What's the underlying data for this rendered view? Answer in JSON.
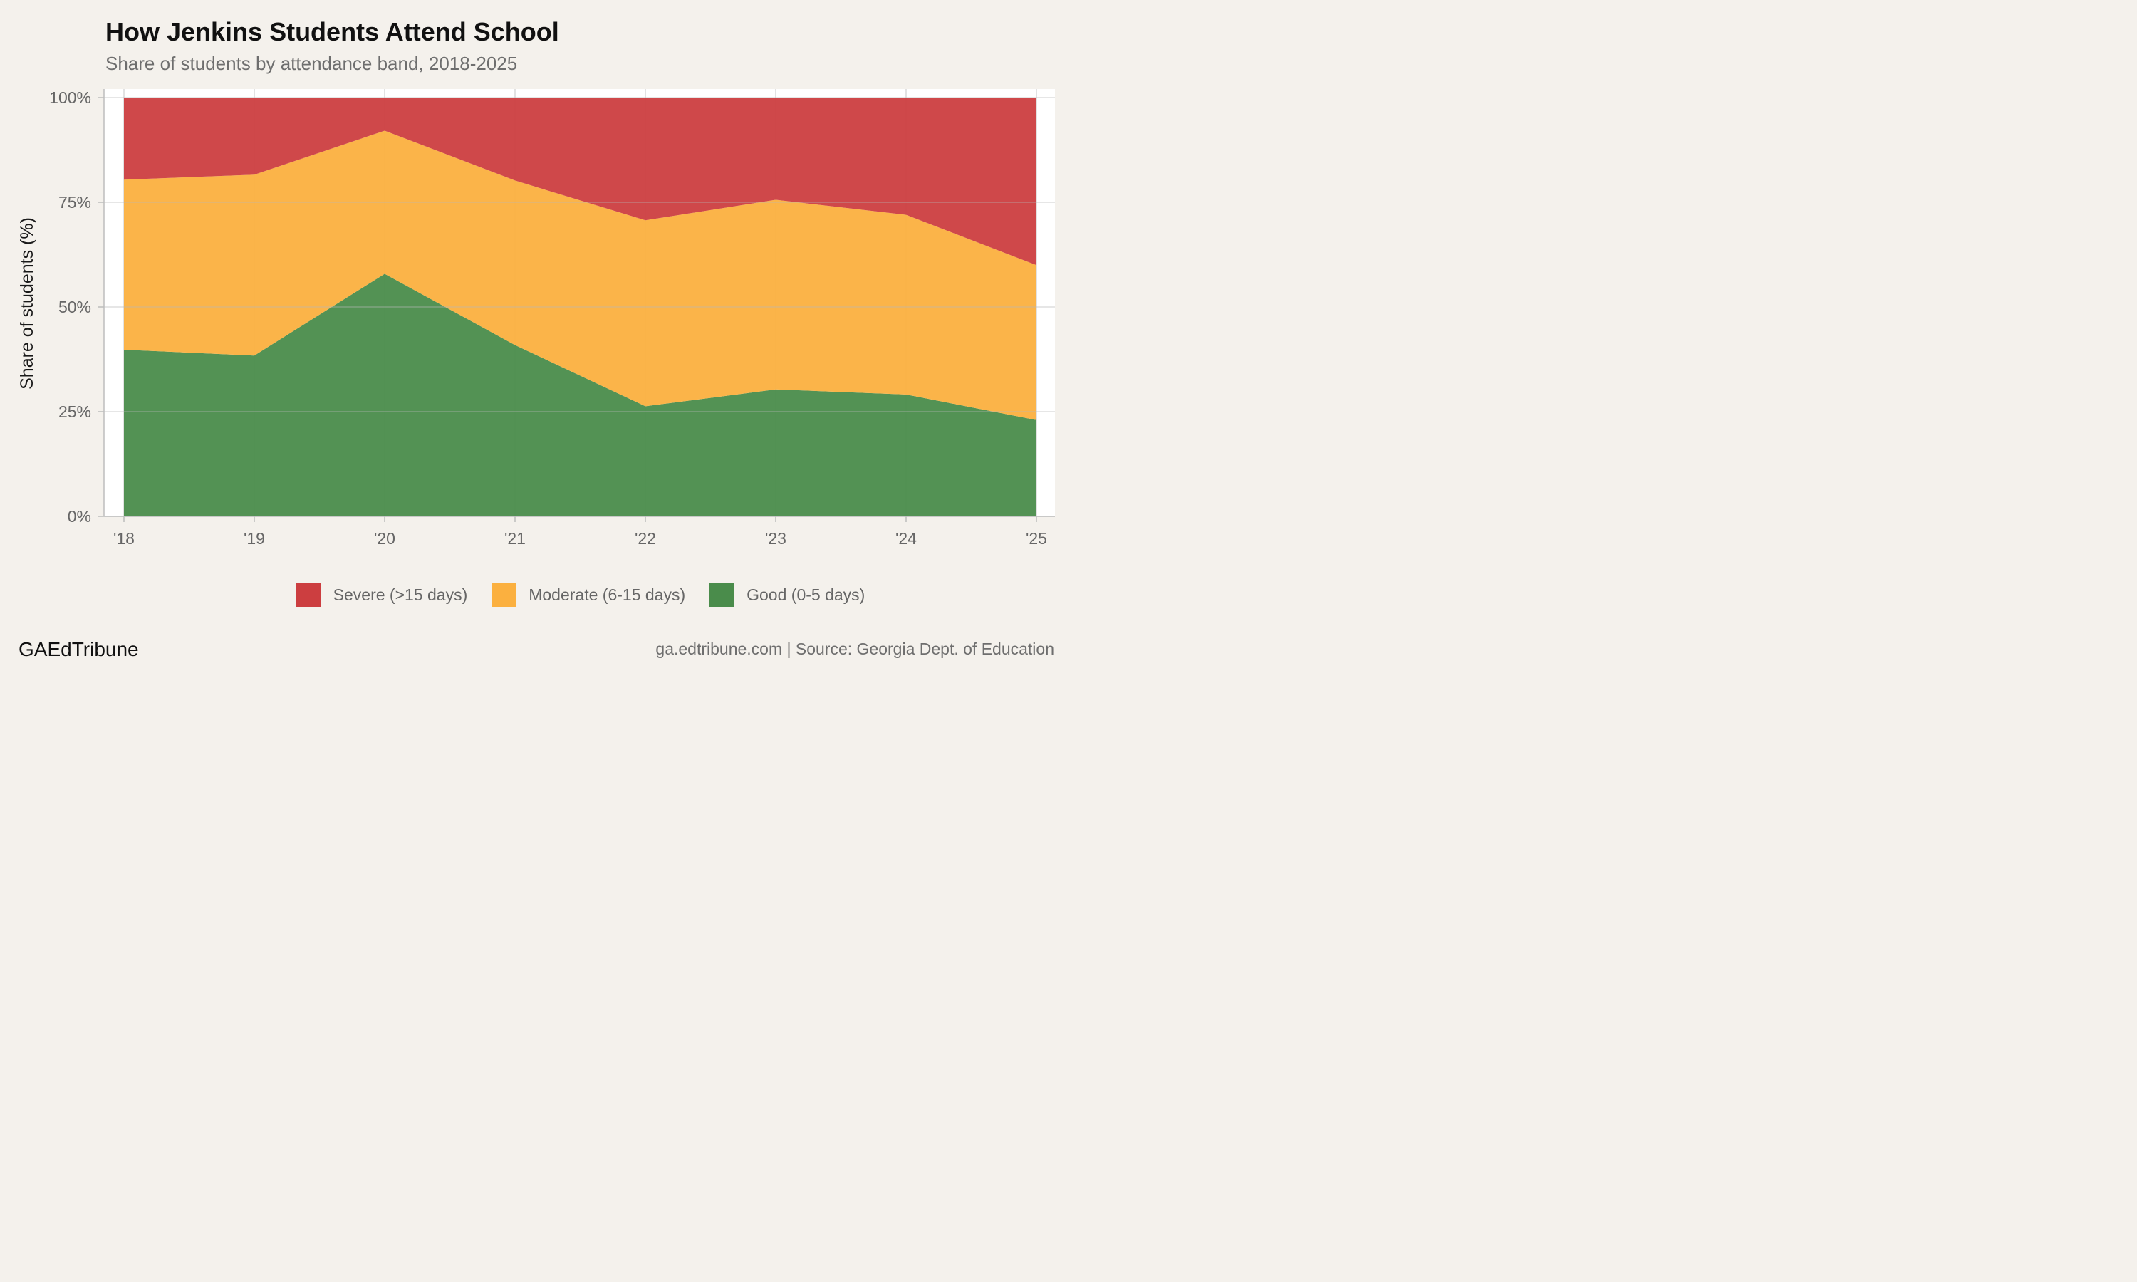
{
  "header": {
    "title": "How Jenkins Students Attend School",
    "subtitle": "Share of students by attendance band, 2018-2025"
  },
  "chart_data": {
    "type": "area",
    "stacked": true,
    "x": [
      2018,
      2019,
      2020,
      2021,
      2022,
      2023,
      2024,
      2025
    ],
    "x_tick_labels": [
      "'18",
      "'19",
      "'20",
      "'21",
      "'22",
      "'23",
      "'24",
      "'25"
    ],
    "ylabel": "Share of students (%)",
    "ylim": [
      0,
      100
    ],
    "y_ticks": [
      0,
      25,
      50,
      75,
      100
    ],
    "y_tick_labels": [
      "0%",
      "25%",
      "50%",
      "75%",
      "100%"
    ],
    "grid": true,
    "legend_position": "bottom",
    "series": [
      {
        "name": "Severe (>15 days)",
        "color": "#cc3e40",
        "values": [
          19.6,
          18.4,
          7.9,
          19.8,
          29.3,
          24.4,
          28.0,
          40.0
        ]
      },
      {
        "name": "Moderate (6-15 days)",
        "color": "#fbb03f",
        "values": [
          40.6,
          43.2,
          34.2,
          39.3,
          44.4,
          45.3,
          42.9,
          37.0
        ]
      },
      {
        "name": "Good (0-5 days)",
        "color": "#4a8c4b",
        "values": [
          39.8,
          38.4,
          57.9,
          40.9,
          26.3,
          30.3,
          29.1,
          23.0
        ]
      }
    ]
  },
  "footer": {
    "brand": "GAEdTribune",
    "source": "ga.edtribune.com | Source: Georgia Dept. of Education"
  }
}
